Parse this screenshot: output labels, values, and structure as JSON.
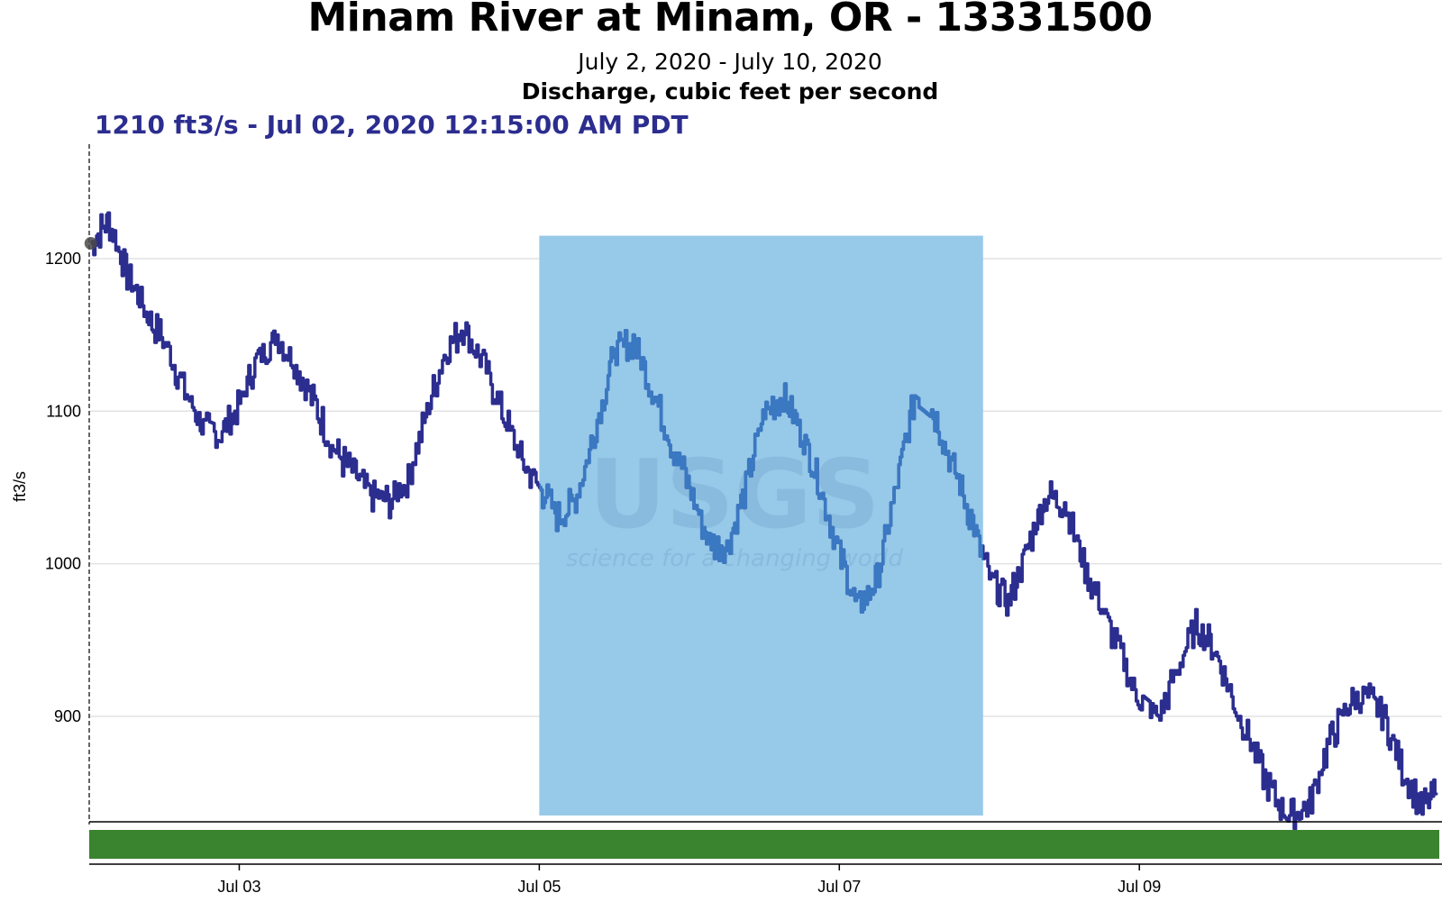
{
  "title": "Minam River at Minam, OR - 13331500",
  "date_range": "July 2, 2020 - July 10, 2020",
  "parameter": "Discharge, cubic feet per second",
  "tooltip": "1210 ft3/s - Jul 02, 2020 12:15:00 AM PDT",
  "watermark": {
    "logo": "USGS",
    "tagline": "science for a changing world"
  },
  "colors": {
    "series": "#2b2d8f",
    "series_in_highlight": "#3a78c2",
    "highlight": "#97c9e8",
    "approval_bar": "#3a842f",
    "grid": "#e3e3e3"
  },
  "chart_data": {
    "type": "line",
    "title": "Minam River at Minam, OR - 13331500",
    "subtitle": "July 2, 2020 - July 10, 2020",
    "ylabel": "ft3/s",
    "xlabel": "",
    "x_ticks": [
      {
        "label": "Jul 03",
        "day": 3
      },
      {
        "label": "Jul 05",
        "day": 5
      },
      {
        "label": "Jul 07",
        "day": 7
      },
      {
        "label": "Jul 09",
        "day": 9
      }
    ],
    "y_ticks": [
      900,
      1000,
      1100,
      1200
    ],
    "xlim": [
      "2020-07-02T00:00",
      "2020-07-10T23:59"
    ],
    "ylim": [
      835,
      1275
    ],
    "grid": true,
    "highlight_range": {
      "x": [
        "2020-07-05T00:00",
        "2020-07-07T23:00"
      ],
      "y_top": 1215
    },
    "series": [
      {
        "x": [
          "2020-07-02T00:15",
          "2020-07-02T03:00",
          "2020-07-02T06:00",
          "2020-07-02T09:00",
          "2020-07-02T12:00",
          "2020-07-02T15:00",
          "2020-07-02T18:00",
          "2020-07-02T21:00",
          "2020-07-03T00:00",
          "2020-07-03T03:00",
          "2020-07-03T06:00",
          "2020-07-03T09:00",
          "2020-07-03T12:00",
          "2020-07-03T15:00",
          "2020-07-03T18:00",
          "2020-07-03T21:00",
          "2020-07-04T00:00",
          "2020-07-04T03:00",
          "2020-07-04T06:00",
          "2020-07-04T09:00",
          "2020-07-04T12:00",
          "2020-07-04T15:00",
          "2020-07-04T18:00",
          "2020-07-04T21:00",
          "2020-07-05T00:00",
          "2020-07-05T03:00",
          "2020-07-05T06:00",
          "2020-07-05T09:00",
          "2020-07-05T12:00",
          "2020-07-05T15:00",
          "2020-07-05T18:00",
          "2020-07-05T21:00",
          "2020-07-06T00:00",
          "2020-07-06T03:00",
          "2020-07-06T06:00",
          "2020-07-06T09:00",
          "2020-07-06T12:00",
          "2020-07-06T15:00",
          "2020-07-06T18:00",
          "2020-07-06T21:00",
          "2020-07-07T00:00",
          "2020-07-07T03:00",
          "2020-07-07T06:00",
          "2020-07-07T09:00",
          "2020-07-07T12:00",
          "2020-07-07T15:00",
          "2020-07-07T18:00",
          "2020-07-07T21:00",
          "2020-07-08T00:00",
          "2020-07-08T03:00",
          "2020-07-08T06:00",
          "2020-07-08T09:00",
          "2020-07-08T12:00",
          "2020-07-08T15:00",
          "2020-07-08T18:00",
          "2020-07-08T21:00",
          "2020-07-09T00:00",
          "2020-07-09T03:00",
          "2020-07-09T06:00",
          "2020-07-09T09:00",
          "2020-07-09T12:00",
          "2020-07-09T15:00",
          "2020-07-09T18:00",
          "2020-07-09T21:00",
          "2020-07-10T00:00",
          "2020-07-10T03:00",
          "2020-07-10T06:00",
          "2020-07-10T09:00",
          "2020-07-10T12:00",
          "2020-07-10T15:00",
          "2020-07-10T18:00",
          "2020-07-10T21:00",
          "2020-07-10T23:30"
        ],
        "values": [
          1210,
          1225,
          1190,
          1165,
          1145,
          1115,
          1090,
          1085,
          1105,
          1135,
          1150,
          1130,
          1105,
          1075,
          1060,
          1045,
          1040,
          1055,
          1100,
          1140,
          1155,
          1130,
          1100,
          1070,
          1050,
          1030,
          1045,
          1090,
          1140,
          1145,
          1115,
          1080,
          1050,
          1015,
          1010,
          1050,
          1100,
          1110,
          1085,
          1050,
          1005,
          970,
          990,
          1050,
          1110,
          1100,
          1065,
          1030,
          990,
          975,
          1010,
          1045,
          1040,
          1000,
          970,
          940,
          910,
          900,
          930,
          960,
          945,
          910,
          880,
          850,
          835,
          840,
          880,
          905,
          915,
          900,
          865,
          840,
          850
        ]
      }
    ]
  }
}
